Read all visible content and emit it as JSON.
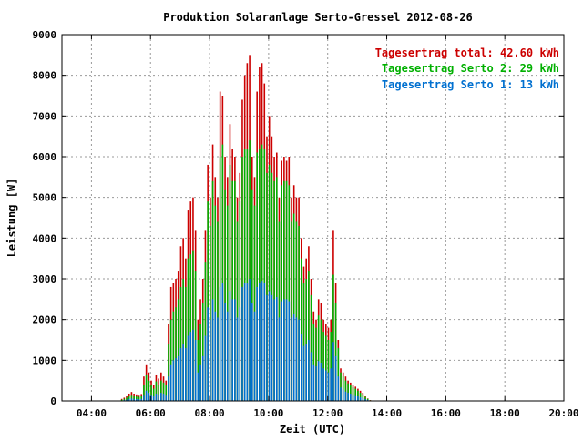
{
  "chart_data": {
    "type": "bar",
    "title": "Produktion Solaranlage Serto-Gressel 2012-08-26",
    "xlabel": "Zeit (UTC)",
    "ylabel": "Leistung [W]",
    "x_ticks": [
      "04:00",
      "06:00",
      "08:00",
      "10:00",
      "12:00",
      "14:00",
      "16:00",
      "18:00",
      "20:00"
    ],
    "y_ticks": [
      "0",
      "1000",
      "2000",
      "3000",
      "4000",
      "5000",
      "6000",
      "7000",
      "8000",
      "9000"
    ],
    "xlim": [
      "03:00",
      "20:00"
    ],
    "ylim": [
      0,
      9000
    ],
    "grid": true,
    "legend_position": "top-right",
    "legend": [
      {
        "text": "Tagesertrag total: 42.60 kWh",
        "color": "#cc0000"
      },
      {
        "text": "Tagesertrag Serto 2: 29 kWh",
        "color": "#00b000"
      },
      {
        "text": "Tagesertrag Serto 1: 13 kWh",
        "color": "#0070d0"
      }
    ],
    "series_colors": {
      "total": "#cc0000",
      "serto2": "#00b000",
      "serto1": "#0070d0"
    },
    "time_start": "05:00",
    "time_step_minutes": 5,
    "series": [
      {
        "name": "Tagesertrag total",
        "values": [
          50,
          80,
          120,
          180,
          220,
          180,
          160,
          150,
          170,
          600,
          900,
          700,
          500,
          400,
          650,
          550,
          700,
          600,
          500,
          1900,
          2800,
          2900,
          3000,
          3200,
          3800,
          4000,
          3500,
          4700,
          4900,
          5000,
          4200,
          2000,
          2500,
          3000,
          4200,
          5800,
          5000,
          6300,
          5500,
          5000,
          7600,
          7500,
          6000,
          5500,
          6800,
          6200,
          6000,
          5000,
          5600,
          7400,
          8000,
          8300,
          8500,
          6000,
          5500,
          7600,
          8200,
          8300,
          7800,
          6500,
          7000,
          6500,
          6000,
          6100,
          5000,
          5900,
          6000,
          5900,
          6000,
          5000,
          5300,
          5000,
          5000,
          4000,
          3300,
          3500,
          3800,
          3000,
          2200,
          2000,
          2500,
          2400,
          2000,
          1900,
          1800,
          2000,
          4200,
          2900,
          1500,
          800,
          700,
          600,
          500,
          450,
          400,
          350,
          300,
          250,
          200,
          120,
          60,
          20
        ]
      },
      {
        "name": "Tagesertrag Serto 2",
        "values": [
          30,
          50,
          80,
          120,
          150,
          130,
          110,
          100,
          120,
          400,
          650,
          500,
          380,
          300,
          480,
          400,
          500,
          450,
          380,
          1400,
          2000,
          2200,
          2300,
          2500,
          2800,
          3000,
          2800,
          3500,
          3600,
          3700,
          3200,
          1500,
          1900,
          2400,
          3400,
          4900,
          4300,
          5400,
          4800,
          4400,
          6000,
          6300,
          5200,
          4800,
          5800,
          5400,
          5400,
          4400,
          4900,
          6000,
          6200,
          6200,
          6400,
          5200,
          4800,
          6100,
          6200,
          6300,
          6200,
          5600,
          5800,
          5600,
          5400,
          5500,
          4400,
          5300,
          5400,
          5400,
          5300,
          4400,
          4600,
          4400,
          4300,
          3500,
          2900,
          3000,
          3200,
          2600,
          1900,
          1800,
          2100,
          2000,
          1700,
          1600,
          1500,
          1700,
          3100,
          2400,
          1300,
          700,
          600,
          500,
          430,
          380,
          340,
          300,
          250,
          200,
          160,
          100,
          50,
          15
        ]
      },
      {
        "name": "Tagesertrag Serto 1",
        "values": [
          10,
          20,
          30,
          50,
          60,
          50,
          45,
          40,
          50,
          150,
          250,
          200,
          150,
          120,
          180,
          160,
          200,
          180,
          150,
          600,
          900,
          1000,
          1050,
          1100,
          1300,
          1400,
          1300,
          1600,
          1700,
          1750,
          1500,
          700,
          900,
          1100,
          1600,
          2300,
          2000,
          2500,
          2200,
          2050,
          2800,
          2900,
          2400,
          2200,
          2700,
          2500,
          2500,
          2050,
          2300,
          2800,
          2900,
          2900,
          3000,
          2400,
          2200,
          2800,
          2900,
          2950,
          2900,
          2600,
          2700,
          2600,
          2500,
          2550,
          2050,
          2450,
          2500,
          2500,
          2450,
          2050,
          2150,
          2050,
          2000,
          1650,
          1350,
          1400,
          1500,
          1200,
          900,
          850,
          980,
          940,
          800,
          750,
          700,
          800,
          1450,
          1100,
          600,
          330,
          280,
          230,
          200,
          180,
          160,
          140,
          120,
          90,
          70,
          45,
          25,
          8
        ]
      }
    ]
  }
}
